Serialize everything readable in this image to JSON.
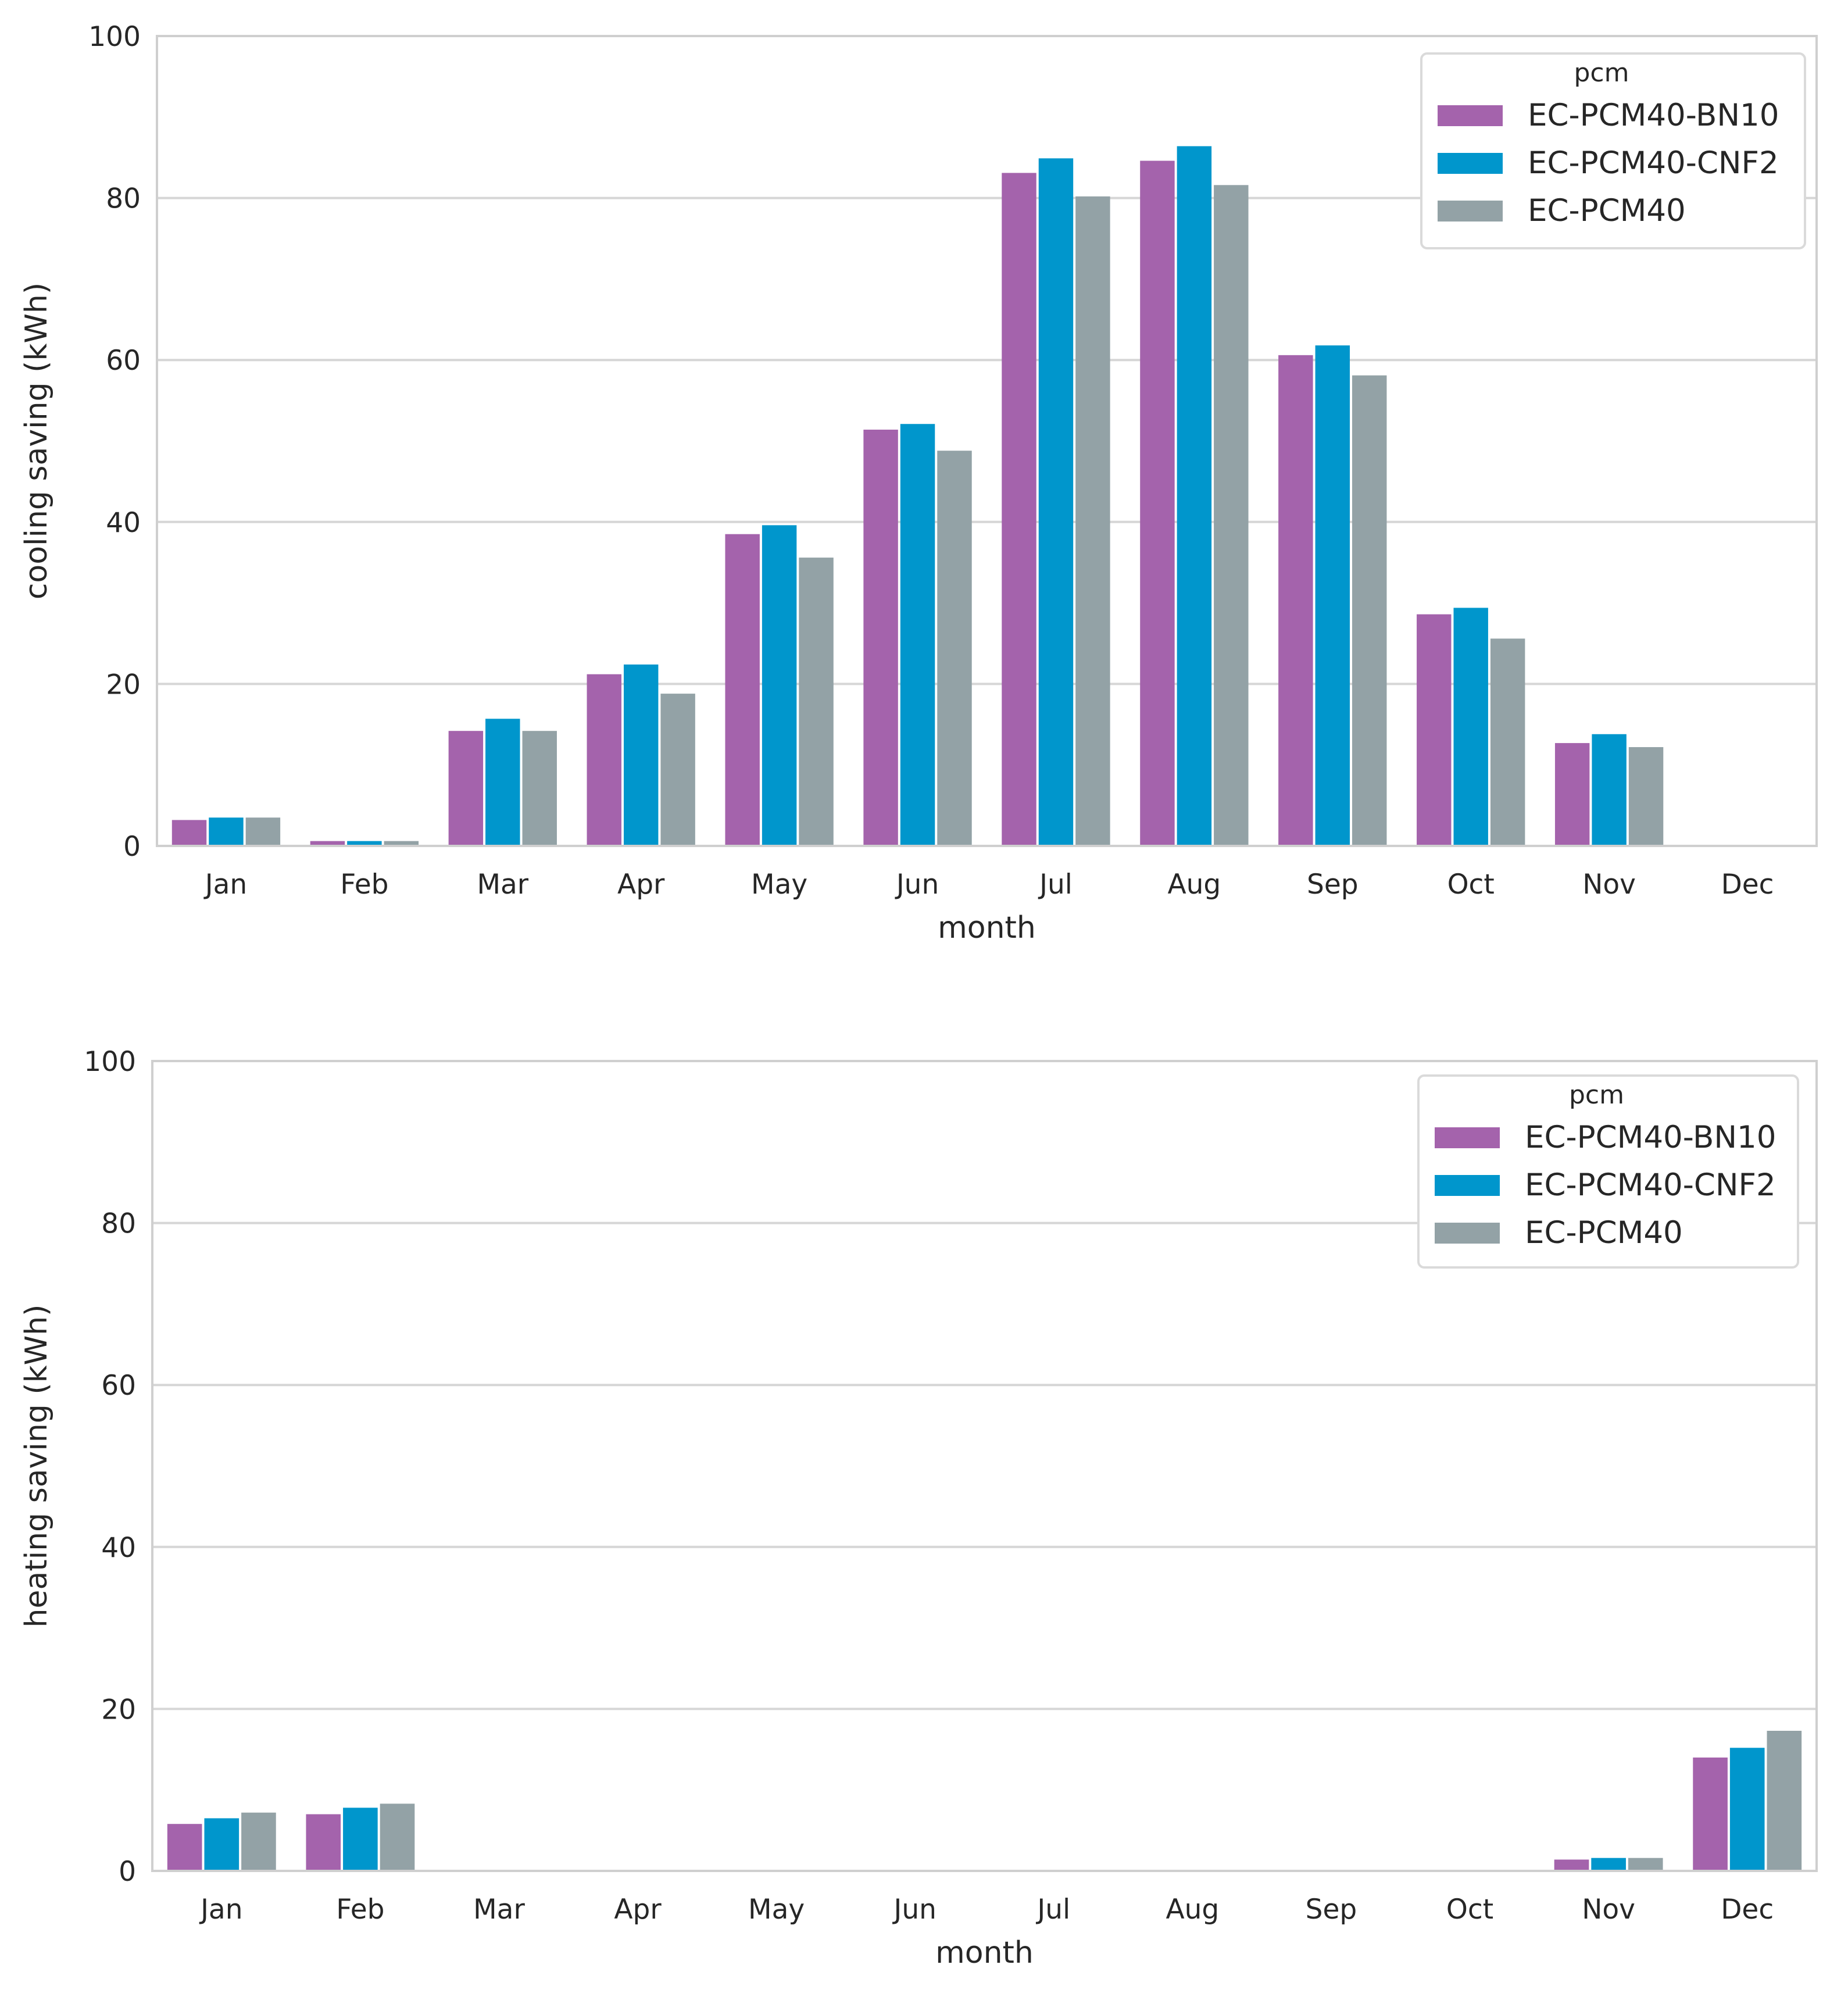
{
  "colors": {
    "series": [
      "#A463AC",
      "#0096CC",
      "#93A2A6"
    ],
    "grid": "#D6D6D6",
    "frame": "#CFCFCF",
    "legend_border": "#DADADA"
  },
  "chart_data": [
    {
      "type": "bar",
      "xlabel": "month",
      "ylabel": "cooling saving (kWh)",
      "ylim": [
        0,
        100
      ],
      "yticks": [
        "0",
        "20",
        "40",
        "60",
        "80",
        "100"
      ],
      "grid": "horizontal",
      "legend": {
        "title": "pcm",
        "placement": "top-right"
      },
      "categories": [
        "Jan",
        "Feb",
        "Mar",
        "Apr",
        "May",
        "Jun",
        "Jul",
        "Aug",
        "Sep",
        "Oct",
        "Nov",
        "Dec"
      ],
      "series": [
        {
          "name": "EC-PCM40-BN10",
          "values": [
            3.2,
            0.6,
            14.2,
            21.2,
            38.5,
            51.4,
            83.1,
            84.6,
            60.6,
            28.6,
            12.7,
            0
          ]
        },
        {
          "name": "EC-PCM40-CNF2",
          "values": [
            3.5,
            0.6,
            15.7,
            22.4,
            39.6,
            52.1,
            84.9,
            86.4,
            61.8,
            29.4,
            13.8,
            0
          ]
        },
        {
          "name": "EC-PCM40",
          "values": [
            3.5,
            0.6,
            14.2,
            18.8,
            35.6,
            48.8,
            80.2,
            81.6,
            58.1,
            25.6,
            12.2,
            0
          ]
        }
      ]
    },
    {
      "type": "bar",
      "xlabel": "month",
      "ylabel": "heating saving (kWh)",
      "ylim": [
        0,
        100
      ],
      "yticks": [
        "0",
        "20",
        "40",
        "60",
        "80",
        "100"
      ],
      "grid": "horizontal",
      "legend": {
        "title": "pcm",
        "placement": "top-right"
      },
      "categories": [
        "Jan",
        "Feb",
        "Mar",
        "Apr",
        "May",
        "Jun",
        "Jul",
        "Aug",
        "Sep",
        "Oct",
        "Nov",
        "Dec"
      ],
      "series": [
        {
          "name": "EC-PCM40-BN10",
          "values": [
            5.8,
            7.0,
            0,
            0,
            0,
            0,
            0,
            0,
            0,
            0,
            1.4,
            14.0
          ]
        },
        {
          "name": "EC-PCM40-CNF2",
          "values": [
            6.5,
            7.8,
            0,
            0,
            0,
            0,
            0,
            0,
            0,
            0,
            1.6,
            15.2
          ]
        },
        {
          "name": "EC-PCM40",
          "values": [
            7.2,
            8.3,
            0,
            0,
            0,
            0,
            0,
            0,
            0,
            0,
            1.6,
            17.3
          ]
        }
      ]
    }
  ]
}
